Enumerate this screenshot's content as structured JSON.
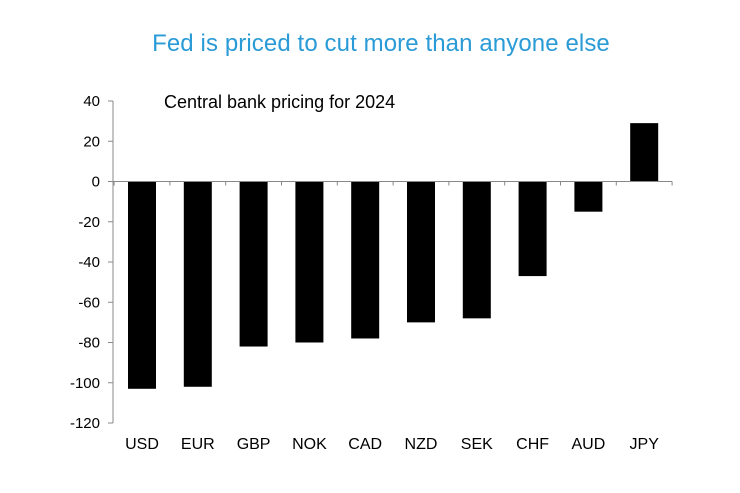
{
  "headline": "Fed is priced to cut more than anyone else",
  "colors": {
    "headline": "#2a9bd6",
    "bar": "#000000",
    "axis": "#888888"
  },
  "chart_data": {
    "type": "bar",
    "title": "Central bank pricing for 2024",
    "xlabel": "",
    "ylabel": "",
    "categories": [
      "USD",
      "EUR",
      "GBP",
      "NOK",
      "CAD",
      "NZD",
      "SEK",
      "CHF",
      "AUD",
      "JPY"
    ],
    "values": [
      -103,
      -102,
      -82,
      -80,
      -78,
      -70,
      -68,
      -47,
      -15,
      29
    ],
    "ylim": [
      -120,
      40
    ],
    "yticks": [
      40,
      20,
      0,
      -20,
      -40,
      -60,
      -80,
      -100,
      -120
    ],
    "grid": false,
    "legend": "none"
  }
}
